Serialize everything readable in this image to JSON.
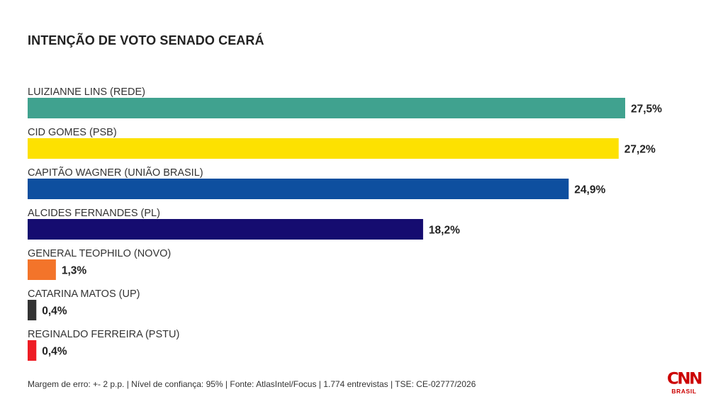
{
  "title": "INTENÇÃO DE VOTO SENADO CEARÁ",
  "chart_data": {
    "type": "bar",
    "orientation": "horizontal",
    "title": "INTENÇÃO DE VOTO SENADO CEARÁ",
    "xlabel": "",
    "ylabel": "",
    "xlim": [
      0,
      27.5
    ],
    "grid": false,
    "categories": [
      "LUIZIANNE LINS (REDE)",
      "CID GOMES (PSB)",
      "CAPITÃO WAGNER (UNIÃO BRASIL)",
      "ALCIDES FERNANDES (PL)",
      "GENERAL TEOPHILO (NOVO)",
      "CATARINA MATOS (UP)",
      "REGINALDO FERREIRA (PSTU)"
    ],
    "values": [
      27.5,
      27.2,
      24.9,
      18.2,
      1.3,
      0.4,
      0.4
    ],
    "value_labels": [
      "27,5%",
      "27,2%",
      "24,9%",
      "18,2%",
      "1,3%",
      "0,4%",
      "0,4%"
    ],
    "colors": [
      "#40a28f",
      "#fde101",
      "#0e4f9f",
      "#150c70",
      "#f3742a",
      "#333333",
      "#ee1c24"
    ]
  },
  "footer": "Margem de erro: +- 2 p.p. | Nível de confiança: 95% | Fonte: AtlasIntel/Focus | 1.774 entrevistas | TSE: CE-02777/2026",
  "logo": {
    "brand": "CNN",
    "sub": "BRASIL",
    "color": "#cc0000"
  }
}
